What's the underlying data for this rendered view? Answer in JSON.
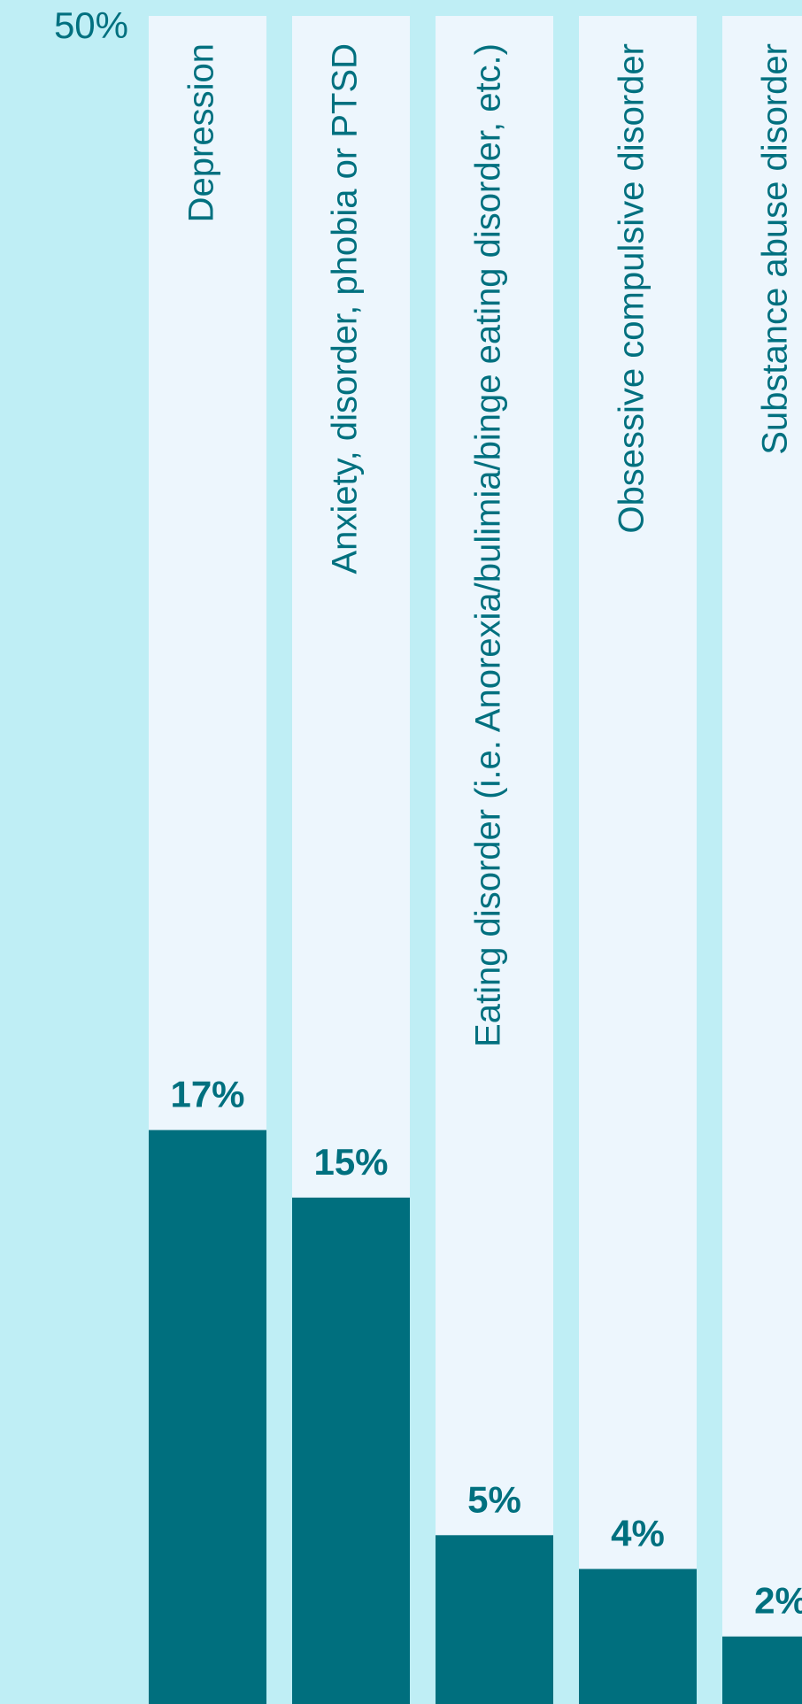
{
  "chart_data": {
    "type": "bar",
    "categories": [
      "Depression",
      "Anxiety, disorder, phobia or PTSD",
      "Eating disorder (i.e. Anorexia/bulimia/binge eating disorder, etc.)",
      "Obsessive compulsive disorder",
      "Substance abuse disorder"
    ],
    "values": [
      17,
      15,
      5,
      4,
      2
    ],
    "value_labels": [
      "17%",
      "15%",
      "5%",
      "4%",
      "2%"
    ],
    "color": "#006f7e",
    "ylim": [
      0,
      50
    ],
    "yticks": [
      {
        "value": 50,
        "label": "50%"
      }
    ]
  }
}
